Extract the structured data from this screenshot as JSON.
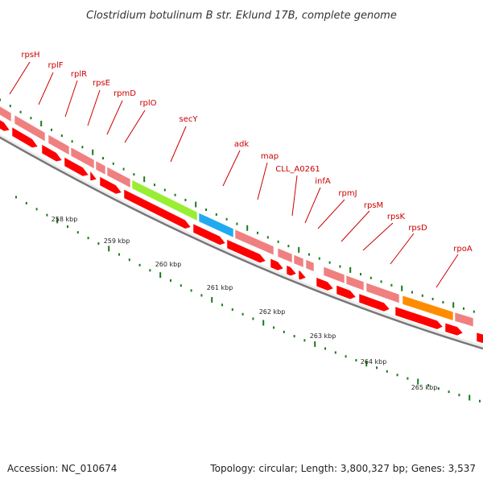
{
  "header": {
    "title": "Clostridium botulinum B str. Eklund 17B, complete genome"
  },
  "footer": {
    "accession": "Accession: NC_010674",
    "topology": "Topology: circular; Length: 3,800,327 bp; Genes: 3,537"
  },
  "colors": {
    "gene_label": "#cc0000",
    "cds": "#ff0000",
    "feature_default": "#f08080",
    "feature_green": "#99ee33",
    "feature_blue": "#22aaee",
    "feature_orange": "#ff8c00",
    "tick": "#1a7a1a",
    "backbone": "#7f7f7f"
  },
  "scale": {
    "ticks": [
      {
        "label": "258 kbp"
      },
      {
        "label": "259 kbp"
      },
      {
        "label": "260 kbp"
      },
      {
        "label": "261 kbp"
      },
      {
        "label": "262 kbp"
      },
      {
        "label": "263 kbp"
      },
      {
        "label": "264 kbp"
      },
      {
        "label": "265 kbp"
      }
    ]
  },
  "genes": [
    {
      "name": "rpsH"
    },
    {
      "name": "rplF"
    },
    {
      "name": "rplR"
    },
    {
      "name": "rpsE"
    },
    {
      "name": "rpmD"
    },
    {
      "name": "rplO"
    },
    {
      "name": "secY"
    },
    {
      "name": "adk"
    },
    {
      "name": "map"
    },
    {
      "name": "CLL_A0261"
    },
    {
      "name": "infA"
    },
    {
      "name": "rpmJ"
    },
    {
      "name": "rpsM"
    },
    {
      "name": "rpsK"
    },
    {
      "name": "rpsD"
    },
    {
      "name": "rpoA"
    }
  ]
}
